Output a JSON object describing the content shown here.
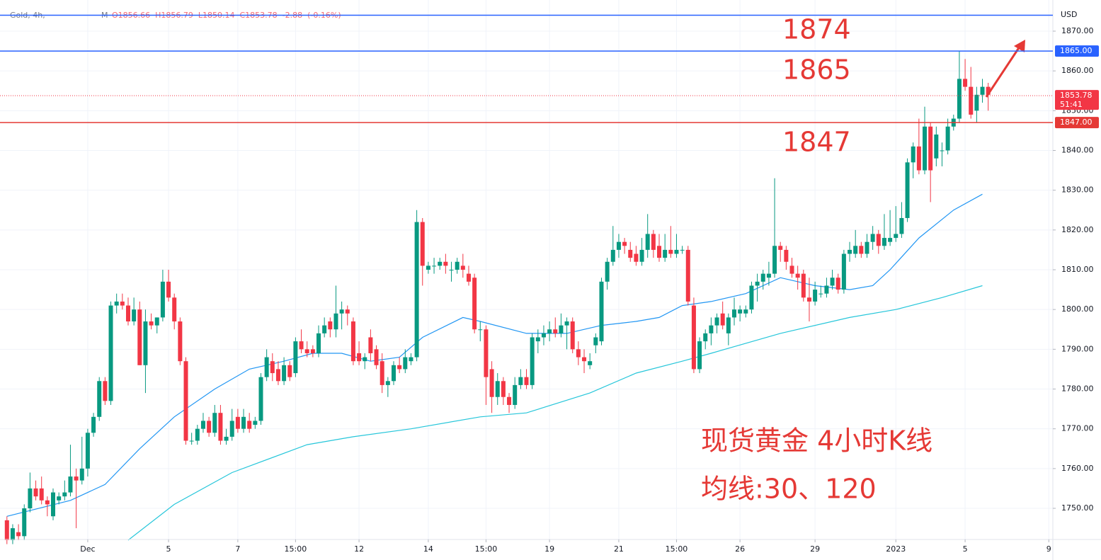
{
  "chart_data": {
    "type": "candlestick",
    "header": {
      "symbol": "Gold, 4h,",
      "flag": "M",
      "ohlc_text": "O1856.66  H1856.79  L1850.14  C1853.78  -2.88  (-0.16%)"
    },
    "currency": "USD",
    "up_color": "#089981",
    "down_color": "#f23645",
    "candles": [
      [
        1747,
        1748,
        1741,
        1742
      ],
      [
        1742,
        1746,
        1741,
        1745
      ],
      [
        1744,
        1746,
        1742,
        1743
      ],
      [
        1743,
        1751,
        1742,
        1750
      ],
      [
        1750,
        1759,
        1749,
        1755
      ],
      [
        1755,
        1757,
        1752,
        1753
      ],
      [
        1755,
        1758,
        1751,
        1752
      ],
      [
        1752,
        1753,
        1748,
        1751
      ],
      [
        1748,
        1755,
        1747,
        1754
      ],
      [
        1752,
        1754,
        1751,
        1753
      ],
      [
        1753,
        1757,
        1752,
        1754
      ],
      [
        1754,
        1766,
        1753,
        1758
      ],
      [
        1758,
        1760,
        1745,
        1757
      ],
      [
        1757,
        1768,
        1756,
        1760
      ],
      [
        1760,
        1770,
        1758,
        1769
      ],
      [
        1769,
        1774,
        1768,
        1773
      ],
      [
        1773,
        1783,
        1772,
        1782
      ],
      [
        1782,
        1783,
        1776,
        1777
      ],
      [
        1777,
        1802,
        1776,
        1801
      ],
      [
        1801,
        1804,
        1799,
        1802
      ],
      [
        1802,
        1804,
        1800,
        1801
      ],
      [
        1801,
        1803,
        1796,
        1797
      ],
      [
        1797,
        1803,
        1796,
        1800
      ],
      [
        1800,
        1802,
        1786,
        1786
      ],
      [
        1786,
        1800,
        1779,
        1797
      ],
      [
        1797,
        1799,
        1795,
        1796
      ],
      [
        1796,
        1798,
        1794,
        1798
      ],
      [
        1798,
        1810,
        1797,
        1807
      ],
      [
        1807,
        1810,
        1802,
        1803
      ],
      [
        1803,
        1804,
        1795,
        1797
      ],
      [
        1797,
        1798,
        1786,
        1787
      ],
      [
        1787,
        1788,
        1766,
        1767
      ],
      [
        1767,
        1769,
        1766,
        1767
      ],
      [
        1767,
        1771,
        1766,
        1770
      ],
      [
        1770,
        1774,
        1769,
        1772
      ],
      [
        1772,
        1773,
        1768,
        1769
      ],
      [
        1769,
        1776,
        1768,
        1774
      ],
      [
        1774,
        1776,
        1766,
        1767
      ],
      [
        1767,
        1770,
        1766,
        1768
      ],
      [
        1768,
        1775,
        1767,
        1772
      ],
      [
        1773,
        1775,
        1769,
        1770
      ],
      [
        1770,
        1775,
        1769,
        1773
      ],
      [
        1772,
        1774,
        1769,
        1770
      ],
      [
        1771,
        1773,
        1770,
        1772
      ],
      [
        1772,
        1784,
        1771,
        1783
      ],
      [
        1783,
        1790,
        1782,
        1788
      ],
      [
        1787,
        1789,
        1782,
        1784
      ],
      [
        1785,
        1787,
        1781,
        1782
      ],
      [
        1782,
        1788,
        1781,
        1786
      ],
      [
        1786,
        1787,
        1782,
        1783
      ],
      [
        1784,
        1793,
        1783,
        1792
      ],
      [
        1792,
        1795,
        1789,
        1790
      ],
      [
        1790,
        1792,
        1788,
        1789
      ],
      [
        1790,
        1791,
        1788,
        1789
      ],
      [
        1789,
        1796,
        1788,
        1794
      ],
      [
        1794,
        1798,
        1793,
        1796
      ],
      [
        1797,
        1798,
        1793,
        1795
      ],
      [
        1795,
        1806,
        1793,
        1799
      ],
      [
        1799,
        1802,
        1795,
        1800
      ],
      [
        1800,
        1801,
        1796,
        1799
      ],
      [
        1797,
        1798,
        1786,
        1787
      ],
      [
        1789,
        1792,
        1786,
        1787
      ],
      [
        1787,
        1789,
        1785,
        1788
      ],
      [
        1793,
        1795,
        1787,
        1789
      ],
      [
        1790,
        1791,
        1785,
        1786
      ],
      [
        1787,
        1789,
        1779,
        1781
      ],
      [
        1781,
        1783,
        1778,
        1782
      ],
      [
        1782,
        1787,
        1781,
        1786
      ],
      [
        1786,
        1788,
        1784,
        1785
      ],
      [
        1785,
        1790,
        1784,
        1788
      ],
      [
        1787,
        1789,
        1786,
        1788
      ],
      [
        1788,
        1825,
        1787,
        1822
      ],
      [
        1822,
        1823,
        1806,
        1811
      ],
      [
        1810,
        1812,
        1809,
        1811
      ],
      [
        1811,
        1813,
        1809,
        1811
      ],
      [
        1811,
        1813,
        1810,
        1812
      ],
      [
        1812,
        1814,
        1809,
        1811
      ],
      [
        1810,
        1812,
        1807,
        1810
      ],
      [
        1810,
        1813,
        1809,
        1812
      ],
      [
        1811,
        1814,
        1808,
        1810
      ],
      [
        1809,
        1811,
        1806,
        1807
      ],
      [
        1808,
        1809,
        1794,
        1795
      ],
      [
        1795,
        1797,
        1792,
        1795
      ],
      [
        1795,
        1796,
        1776,
        1783
      ],
      [
        1785,
        1787,
        1774,
        1778
      ],
      [
        1778,
        1784,
        1776,
        1782
      ],
      [
        1782,
        1783,
        1776,
        1778
      ],
      [
        1778,
        1779,
        1774,
        1776
      ],
      [
        1776,
        1783,
        1775,
        1781
      ],
      [
        1781,
        1785,
        1780,
        1783
      ],
      [
        1783,
        1785,
        1780,
        1781
      ],
      [
        1781,
        1794,
        1780,
        1793
      ],
      [
        1792,
        1795,
        1789,
        1793
      ],
      [
        1793,
        1796,
        1791,
        1794
      ],
      [
        1794,
        1797,
        1792,
        1795
      ],
      [
        1795,
        1798,
        1793,
        1794
      ],
      [
        1794,
        1799,
        1793,
        1796
      ],
      [
        1796,
        1798,
        1790,
        1797
      ],
      [
        1797,
        1798,
        1789,
        1790
      ],
      [
        1790,
        1792,
        1786,
        1788
      ],
      [
        1788,
        1790,
        1784,
        1787
      ],
      [
        1786,
        1789,
        1785,
        1787
      ],
      [
        1791,
        1794,
        1789,
        1793
      ],
      [
        1792,
        1808,
        1791,
        1807
      ],
      [
        1807,
        1813,
        1805,
        1812
      ],
      [
        1812,
        1821,
        1811,
        1815
      ],
      [
        1815,
        1819,
        1813,
        1817
      ],
      [
        1817,
        1818,
        1814,
        1816
      ],
      [
        1815,
        1817,
        1812,
        1813
      ],
      [
        1814,
        1816,
        1811,
        1812
      ],
      [
        1812,
        1818,
        1811,
        1815
      ],
      [
        1815,
        1824,
        1813,
        1819
      ],
      [
        1819,
        1820,
        1813,
        1815
      ],
      [
        1816,
        1819,
        1812,
        1813
      ],
      [
        1813,
        1819,
        1812,
        1815
      ],
      [
        1815,
        1821,
        1813,
        1814
      ],
      [
        1814,
        1819,
        1813,
        1815
      ],
      [
        1815,
        1816,
        1814,
        1815
      ],
      [
        1815,
        1816,
        1801,
        1802
      ],
      [
        1801,
        1803,
        1784,
        1785
      ],
      [
        1785,
        1793,
        1784,
        1792
      ],
      [
        1792,
        1795,
        1790,
        1794
      ],
      [
        1794,
        1798,
        1791,
        1796
      ],
      [
        1796,
        1799,
        1794,
        1798
      ],
      [
        1799,
        1802,
        1795,
        1796
      ],
      [
        1794,
        1799,
        1791,
        1798
      ],
      [
        1798,
        1803,
        1796,
        1800
      ],
      [
        1799,
        1801,
        1797,
        1800
      ],
      [
        1799,
        1801,
        1798,
        1800
      ],
      [
        1800,
        1807,
        1799,
        1806
      ],
      [
        1806,
        1809,
        1802,
        1807
      ],
      [
        1807,
        1810,
        1805,
        1809
      ],
      [
        1808,
        1812,
        1806,
        1809
      ],
      [
        1809,
        1833,
        1808,
        1816
      ],
      [
        1816,
        1817,
        1812,
        1815
      ],
      [
        1815,
        1816,
        1810,
        1812
      ],
      [
        1811,
        1813,
        1808,
        1809
      ],
      [
        1809,
        1811,
        1805,
        1808
      ],
      [
        1809,
        1810,
        1802,
        1803
      ],
      [
        1803,
        1808,
        1797,
        1802
      ],
      [
        1802,
        1807,
        1801,
        1805
      ],
      [
        1804,
        1806,
        1803,
        1804
      ],
      [
        1804,
        1808,
        1803,
        1806
      ],
      [
        1806,
        1810,
        1805,
        1808
      ],
      [
        1808,
        1809,
        1804,
        1805
      ],
      [
        1805,
        1815,
        1804,
        1814
      ],
      [
        1814,
        1817,
        1812,
        1815
      ],
      [
        1814,
        1820,
        1813,
        1816
      ],
      [
        1816,
        1817,
        1813,
        1814
      ],
      [
        1814,
        1819,
        1813,
        1817
      ],
      [
        1817,
        1821,
        1815,
        1819
      ],
      [
        1819,
        1820,
        1814,
        1816
      ],
      [
        1816,
        1824,
        1815,
        1818
      ],
      [
        1817,
        1825,
        1816,
        1818
      ],
      [
        1818,
        1826,
        1817,
        1819
      ],
      [
        1819,
        1827,
        1818,
        1823
      ],
      [
        1823,
        1838,
        1822,
        1837
      ],
      [
        1837,
        1842,
        1833,
        1841
      ],
      [
        1841,
        1848,
        1834,
        1835
      ],
      [
        1835,
        1851,
        1834,
        1846
      ],
      [
        1846,
        1847,
        1827,
        1835
      ],
      [
        1838,
        1846,
        1836,
        1844
      ],
      [
        1840,
        1842,
        1836,
        1840
      ],
      [
        1840,
        1848,
        1839,
        1846
      ],
      [
        1846,
        1849,
        1845,
        1848
      ],
      [
        1848,
        1865,
        1847,
        1858
      ],
      [
        1858,
        1863,
        1855,
        1856
      ],
      [
        1856,
        1861,
        1848,
        1849
      ],
      [
        1850,
        1856,
        1847,
        1854
      ],
      [
        1854,
        1858,
        1852,
        1856
      ],
      [
        1856,
        1857,
        1850,
        1854
      ]
    ],
    "ma_lines": [
      {
        "color": "#2196f3",
        "x": [
          0,
          11,
          17,
          23,
          29,
          36,
          42,
          48,
          53,
          58,
          63,
          68,
          72,
          79,
          82,
          90,
          97,
          103,
          109,
          113,
          117,
          122,
          128,
          134,
          140,
          146,
          150,
          153,
          158,
          164,
          169
        ],
        "values": [
          1748,
          1752,
          1756,
          1765,
          1773,
          1780,
          1785,
          1787,
          1789,
          1789,
          1787,
          1788,
          1793,
          1798,
          1797,
          1794,
          1794,
          1796,
          1797,
          1798,
          1801,
          1802,
          1804,
          1808,
          1806,
          1805,
          1806,
          1810,
          1818,
          1825,
          1829
        ]
      },
      {
        "color": "#26c6da",
        "x": [
          21,
          29,
          39,
          52,
          60,
          70,
          82,
          90,
          101,
          109,
          117,
          122,
          134,
          146,
          154,
          162,
          169
        ],
        "values": [
          1742,
          1751,
          1759,
          1766,
          1768,
          1770,
          1773,
          1774,
          1779,
          1784,
          1787,
          1789,
          1794,
          1798,
          1800,
          1803,
          1806
        ]
      }
    ],
    "hlines": [
      {
        "value": 1874,
        "color": "#2962ff"
      },
      {
        "value": 1865,
        "label": "1865.00",
        "color": "#2962ff"
      },
      {
        "value": 1847,
        "label": "1847.00",
        "color": "#e53935"
      }
    ],
    "last_price": {
      "value": 1853.78,
      "label": "1853.78",
      "countdown": "51:41",
      "color": "#f23645"
    },
    "annotations": [
      "1874",
      "1865",
      "1847"
    ],
    "notes": [
      "现货黄金 4小时K线",
      "均线:30、120"
    ],
    "xlim": [
      -1.2,
      181.2
    ],
    "ylim": [
      1742.17,
      1877.83
    ],
    "xticks": [
      {
        "value": 14,
        "label": "Dec"
      },
      {
        "value": 28,
        "label": "5"
      },
      {
        "value": 40,
        "label": "7"
      },
      {
        "value": 50,
        "label": "15:00"
      },
      {
        "value": 61,
        "label": "12"
      },
      {
        "value": 73,
        "label": "14"
      },
      {
        "value": 83,
        "label": "15:00"
      },
      {
        "value": 94,
        "label": "19"
      },
      {
        "value": 106,
        "label": "21"
      },
      {
        "value": 116,
        "label": "15:00"
      },
      {
        "value": 127,
        "label": "26"
      },
      {
        "value": 140,
        "label": "29"
      },
      {
        "value": 154,
        "label": "2023"
      },
      {
        "value": 166,
        "label": "5"
      },
      {
        "value": 180.5,
        "label": "9"
      }
    ],
    "yticks": [
      {
        "value": 1750,
        "label": "1750.00"
      },
      {
        "value": 1760,
        "label": "1760.00"
      },
      {
        "value": 1770,
        "label": "1770.00"
      },
      {
        "value": 1780,
        "label": "1780.00"
      },
      {
        "value": 1790,
        "label": "1790.00"
      },
      {
        "value": 1800,
        "label": "1800.00"
      },
      {
        "value": 1810,
        "label": "1810.00"
      },
      {
        "value": 1820,
        "label": "1820.00"
      },
      {
        "value": 1830,
        "label": "1830.00"
      },
      {
        "value": 1840,
        "label": "1840.00"
      },
      {
        "value": 1850,
        "label": "1850.00"
      },
      {
        "value": 1860,
        "label": "1860.00"
      },
      {
        "value": 1870,
        "label": "1870.00"
      }
    ]
  }
}
